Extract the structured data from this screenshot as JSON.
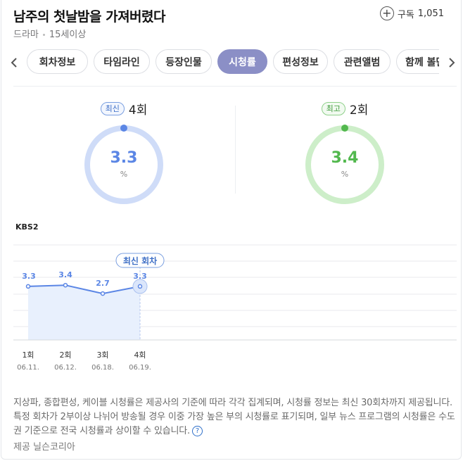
{
  "header": {
    "title": "남주의 첫날밤을 가져버렸다",
    "genre": "드라마",
    "rating": "15세이상",
    "subscribe_label": "구독",
    "subscribe_count": "1,051"
  },
  "tabs": [
    {
      "label": "회차정보",
      "active": false
    },
    {
      "label": "타임라인",
      "active": false
    },
    {
      "label": "등장인물",
      "active": false
    },
    {
      "label": "시청률",
      "active": true
    },
    {
      "label": "편성정보",
      "active": false
    },
    {
      "label": "관련앨범",
      "active": false
    },
    {
      "label": "함께 볼만한",
      "active": false
    }
  ],
  "latest": {
    "badge": "최신",
    "episode": "4회",
    "value": "3.3",
    "unit": "%",
    "fraction": 0.033,
    "color": "#5b86e5",
    "track_color": "#cfdcf8"
  },
  "best": {
    "badge": "최고",
    "episode": "2회",
    "value": "3.4",
    "unit": "%",
    "fraction": 0.034,
    "color": "#52b84e",
    "track_color": "#cdeec9"
  },
  "station": "KBS2",
  "chart_data": {
    "type": "line",
    "categories": [
      "1회",
      "2회",
      "3회",
      "4회"
    ],
    "dates": [
      "06.11.",
      "06.12.",
      "06.18.",
      "06.19."
    ],
    "values": [
      3.3,
      3.4,
      2.7,
      3.3
    ],
    "value_labels": [
      "3.3",
      "3.4",
      "2.7",
      "3.3"
    ],
    "latest_callout": "최신 회차",
    "line_color": "#5b86e5",
    "ylim": [
      0,
      10
    ],
    "grid": true
  },
  "note": "지상파, 종합편성, 케이블 시청률은 제공사의 기준에 따라 각각 집계되며, 시청률 정보는 최신 30회차까지 제공됩니다. 특정 회차가 2부이상 나뉘어 방송될 경우 이중 가장 높은 부의 시청률로 표기되며, 일부 뉴스 프로그램의 시청률은 수도권 기준으로 전국 시청률과 상이할 수 있습니다.",
  "help_icon_glyph": "?",
  "provider": "제공 닐슨코리아"
}
